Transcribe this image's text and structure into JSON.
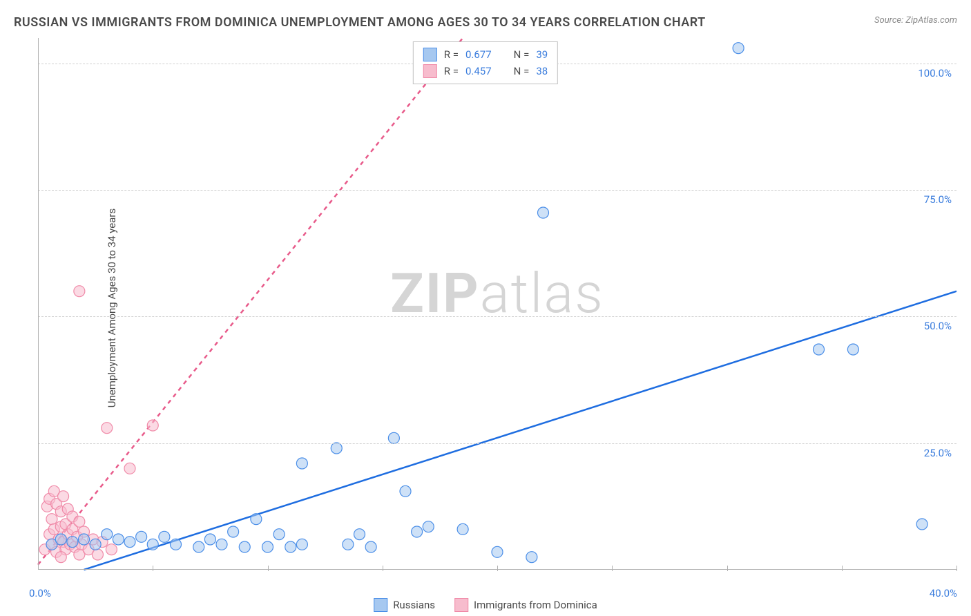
{
  "title": "RUSSIAN VS IMMIGRANTS FROM DOMINICA UNEMPLOYMENT AMONG AGES 30 TO 34 YEARS CORRELATION CHART",
  "source": "Source: ZipAtlas.com",
  "ylabel": "Unemployment Among Ages 30 to 34 years",
  "watermark_left": "ZIP",
  "watermark_right": "atlas",
  "chart": {
    "type": "scatter",
    "background_color": "#ffffff",
    "grid_color": "#d0d0d0",
    "axis_color": "#b0b0b0",
    "xlim": [
      0,
      40
    ],
    "ylim": [
      0,
      105
    ],
    "x_origin_label": "0.0%",
    "x_max_label": "40.0%",
    "y_ticks": [
      {
        "value": 25,
        "label": "25.0%"
      },
      {
        "value": 50,
        "label": "50.0%"
      },
      {
        "value": 75,
        "label": "75.0%"
      },
      {
        "value": 100,
        "label": "100.0%"
      }
    ],
    "x_tick_step": 5,
    "label_color": "#3b7ddd",
    "title_fontsize": 18,
    "label_fontsize": 15,
    "tick_fontsize": 15,
    "marker_radius": 8,
    "marker_opacity": 0.55,
    "line_width": 2.5,
    "series": [
      {
        "name": "Russians",
        "color_stroke": "#4a8ee8",
        "color_fill": "#a6c8f0",
        "trend_color": "#1e6de0",
        "trend_dash": "none",
        "trend": {
          "x1": 2,
          "y1": 0,
          "x2": 40,
          "y2": 55
        },
        "points": [
          [
            0.6,
            5.0
          ],
          [
            1.0,
            6.0
          ],
          [
            1.5,
            5.5
          ],
          [
            2.0,
            6.0
          ],
          [
            2.5,
            5.0
          ],
          [
            3.0,
            7.0
          ],
          [
            3.5,
            6.0
          ],
          [
            4.0,
            5.5
          ],
          [
            4.5,
            6.5
          ],
          [
            5.0,
            5.0
          ],
          [
            5.5,
            6.5
          ],
          [
            6.0,
            5.0
          ],
          [
            7.0,
            4.5
          ],
          [
            7.5,
            6.0
          ],
          [
            8.0,
            5.0
          ],
          [
            8.5,
            7.5
          ],
          [
            9.0,
            4.5
          ],
          [
            9.5,
            10.0
          ],
          [
            10.0,
            4.5
          ],
          [
            10.5,
            7.0
          ],
          [
            11.0,
            4.5
          ],
          [
            11.5,
            5.0
          ],
          [
            11.5,
            21.0
          ],
          [
            13.0,
            24.0
          ],
          [
            13.5,
            5.0
          ],
          [
            14.0,
            7.0
          ],
          [
            14.5,
            4.5
          ],
          [
            15.5,
            26.0
          ],
          [
            16.0,
            15.5
          ],
          [
            16.5,
            7.5
          ],
          [
            17.0,
            8.5
          ],
          [
            18.5,
            8.0
          ],
          [
            20.0,
            3.5
          ],
          [
            21.5,
            2.5
          ],
          [
            22.0,
            70.5
          ],
          [
            30.5,
            103.0
          ],
          [
            34.0,
            43.5
          ],
          [
            35.5,
            43.5
          ],
          [
            38.5,
            9.0
          ]
        ]
      },
      {
        "name": "Immigrants from Dominica",
        "color_stroke": "#f08aa8",
        "color_fill": "#f7bccd",
        "trend_color": "#e85a8a",
        "trend_dash": "6,6",
        "trend": {
          "x1": 0,
          "y1": 1,
          "x2": 18.5,
          "y2": 105
        },
        "points": [
          [
            0.3,
            4.0
          ],
          [
            0.4,
            12.5
          ],
          [
            0.5,
            7.0
          ],
          [
            0.5,
            14.0
          ],
          [
            0.6,
            5.0
          ],
          [
            0.6,
            10.0
          ],
          [
            0.7,
            8.0
          ],
          [
            0.7,
            15.5
          ],
          [
            0.8,
            3.5
          ],
          [
            0.8,
            13.0
          ],
          [
            0.9,
            6.0
          ],
          [
            1.0,
            8.5
          ],
          [
            1.0,
            11.5
          ],
          [
            1.1,
            5.5
          ],
          [
            1.1,
            14.5
          ],
          [
            1.2,
            4.0
          ],
          [
            1.2,
            9.0
          ],
          [
            1.3,
            7.0
          ],
          [
            1.3,
            12.0
          ],
          [
            1.4,
            5.0
          ],
          [
            1.5,
            8.0
          ],
          [
            1.5,
            10.5
          ],
          [
            1.6,
            4.5
          ],
          [
            1.7,
            6.5
          ],
          [
            1.8,
            3.0
          ],
          [
            1.8,
            9.5
          ],
          [
            1.9,
            5.0
          ],
          [
            2.0,
            7.5
          ],
          [
            2.2,
            4.0
          ],
          [
            2.4,
            6.0
          ],
          [
            2.6,
            3.0
          ],
          [
            2.8,
            5.5
          ],
          [
            3.0,
            28.0
          ],
          [
            3.2,
            4.0
          ],
          [
            4.0,
            20.0
          ],
          [
            5.0,
            28.5
          ],
          [
            1.8,
            55.0
          ],
          [
            1.0,
            2.5
          ]
        ]
      }
    ],
    "legend_top": [
      {
        "color_fill": "#a6c8f0",
        "color_stroke": "#4a8ee8",
        "r_label": "R =",
        "r_value": "0.677",
        "n_label": "N =",
        "n_value": "39"
      },
      {
        "color_fill": "#f7bccd",
        "color_stroke": "#f08aa8",
        "r_label": "R =",
        "r_value": "0.457",
        "n_label": "N =",
        "n_value": "38"
      }
    ],
    "legend_bottom": [
      {
        "color_fill": "#a6c8f0",
        "color_stroke": "#4a8ee8",
        "label": "Russians"
      },
      {
        "color_fill": "#f7bccd",
        "color_stroke": "#f08aa8",
        "label": "Immigrants from Dominica"
      }
    ]
  }
}
